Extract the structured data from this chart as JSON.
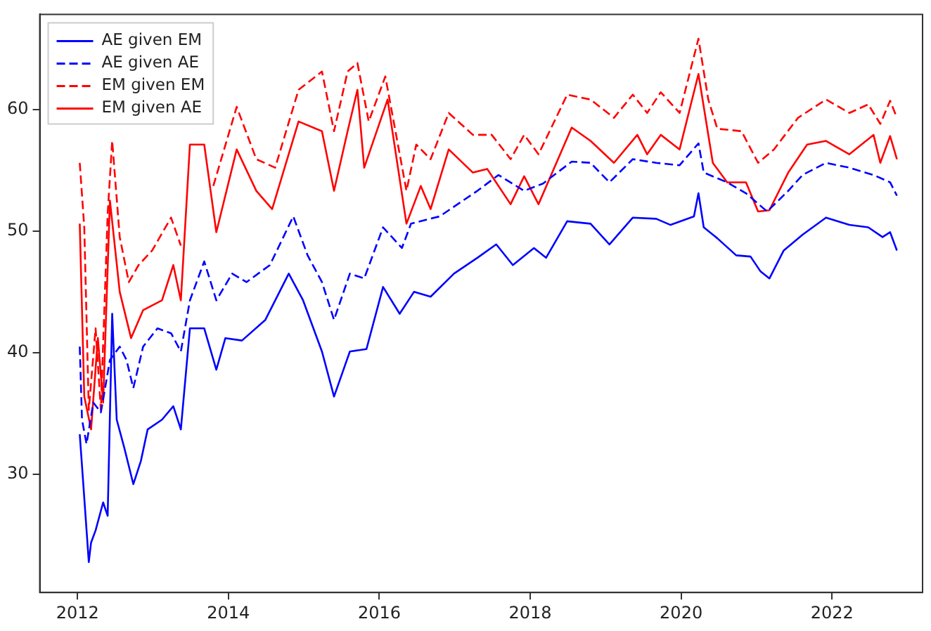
{
  "chart_data": {
    "type": "line",
    "legend": "top left",
    "grid": false,
    "marker": "none",
    "xlim": [
      2011.5,
      2023.2
    ],
    "ylim": [
      20.3,
      67.8
    ],
    "xticks": [
      2012,
      2014,
      2016,
      2018,
      2020,
      2022
    ],
    "yticks": [
      30,
      40,
      50,
      60
    ],
    "series": [
      {
        "name": "AE given EM",
        "color": "#0000ff",
        "line_style": "solid",
        "x": [
          2012.03,
          2012.06,
          2012.15,
          2012.18,
          2012.24,
          2012.34,
          2012.4,
          2012.46,
          2012.52,
          2012.62,
          2012.74,
          2012.84,
          2012.93,
          2013.12,
          2013.27,
          2013.37,
          2013.49,
          2013.68,
          2013.84,
          2013.96,
          2014.18,
          2014.49,
          2014.8,
          2014.99,
          2015.24,
          2015.4,
          2015.61,
          2015.83,
          2016.05,
          2016.27,
          2016.46,
          2016.68,
          2016.99,
          2017.3,
          2017.55,
          2017.77,
          2018.05,
          2018.21,
          2018.49,
          2018.8,
          2019.05,
          2019.36,
          2019.67,
          2019.86,
          2020.17,
          2020.23,
          2020.3,
          2020.48,
          2020.73,
          2020.92,
          2021.05,
          2021.17,
          2021.36,
          2021.61,
          2021.92,
          2022.23,
          2022.48,
          2022.67,
          2022.77,
          2022.86
        ],
        "values": [
          33.3,
          30.7,
          22.8,
          24.4,
          25.4,
          27.7,
          26.6,
          43.2,
          34.5,
          32.2,
          29.2,
          31.1,
          33.7,
          34.5,
          35.6,
          33.7,
          42.0,
          42.0,
          38.6,
          41.2,
          41.0,
          42.7,
          46.5,
          44.3,
          40.1,
          36.4,
          40.1,
          40.3,
          45.4,
          43.2,
          45.0,
          44.6,
          46.5,
          47.8,
          48.9,
          47.2,
          48.6,
          47.8,
          50.8,
          50.6,
          48.9,
          51.1,
          51.0,
          50.5,
          51.2,
          53.1,
          50.3,
          49.4,
          48.0,
          47.9,
          46.7,
          46.1,
          48.4,
          49.7,
          51.1,
          50.5,
          50.3,
          49.5,
          49.9,
          48.4
        ]
      },
      {
        "name": "AE given AE",
        "color": "#0000ff",
        "line_style": "dashed",
        "x": [
          2012.03,
          2012.06,
          2012.12,
          2012.21,
          2012.31,
          2012.43,
          2012.56,
          2012.65,
          2012.74,
          2012.87,
          2013.06,
          2013.24,
          2013.37,
          2013.49,
          2013.68,
          2013.84,
          2014.05,
          2014.24,
          2014.55,
          2014.86,
          2015.05,
          2015.24,
          2015.4,
          2015.61,
          2015.8,
          2016.05,
          2016.3,
          2016.42,
          2016.8,
          2017.3,
          2017.58,
          2017.92,
          2018.17,
          2018.55,
          2018.8,
          2019.05,
          2019.36,
          2019.67,
          2019.98,
          2020.23,
          2020.3,
          2020.61,
          2020.86,
          2021.14,
          2021.42,
          2021.61,
          2021.92,
          2022.23,
          2022.55,
          2022.77,
          2022.86
        ],
        "values": [
          40.5,
          34.5,
          32.5,
          35.9,
          35.1,
          39.4,
          40.5,
          39.4,
          37.1,
          40.5,
          42.0,
          41.6,
          40.1,
          44.3,
          47.5,
          44.3,
          46.5,
          45.8,
          47.2,
          51.2,
          48.0,
          45.8,
          42.7,
          46.5,
          46.1,
          50.3,
          48.6,
          50.6,
          51.2,
          53.3,
          54.6,
          53.3,
          53.9,
          55.7,
          55.6,
          54.0,
          55.9,
          55.6,
          55.4,
          57.2,
          54.8,
          54.0,
          53.1,
          51.6,
          53.3,
          54.6,
          55.6,
          55.2,
          54.6,
          54.0,
          52.9
        ]
      },
      {
        "name": "EM given EM",
        "color": "#ff0000",
        "line_style": "dashed",
        "x": [
          2012.03,
          2012.09,
          2012.15,
          2012.24,
          2012.31,
          2012.4,
          2012.46,
          2012.56,
          2012.68,
          2012.81,
          2012.99,
          2013.24,
          2013.37,
          2013.46,
          2013.62,
          2013.8,
          2014.11,
          2014.37,
          2014.62,
          2014.93,
          2015.24,
          2015.4,
          2015.58,
          2015.71,
          2015.86,
          2016.08,
          2016.36,
          2016.49,
          2016.68,
          2016.92,
          2017.24,
          2017.49,
          2017.74,
          2017.92,
          2018.11,
          2018.49,
          2018.8,
          2019.11,
          2019.36,
          2019.55,
          2019.73,
          2019.98,
          2020.23,
          2020.36,
          2020.48,
          2020.8,
          2021.02,
          2021.23,
          2021.55,
          2021.92,
          2022.23,
          2022.48,
          2022.64,
          2022.77,
          2022.86
        ],
        "values": [
          55.6,
          50.3,
          35.3,
          42.0,
          35.3,
          51.4,
          57.4,
          49.5,
          45.8,
          47.2,
          48.4,
          51.1,
          48.8,
          null,
          null,
          53.7,
          60.2,
          55.9,
          55.2,
          61.6,
          63.1,
          58.2,
          63.1,
          63.8,
          59.0,
          62.7,
          53.3,
          57.1,
          55.9,
          59.7,
          57.9,
          57.9,
          55.9,
          57.9,
          56.3,
          61.2,
          60.8,
          59.3,
          61.2,
          59.7,
          61.4,
          59.7,
          65.8,
          60.8,
          58.4,
          58.2,
          55.6,
          56.7,
          59.3,
          60.8,
          59.7,
          60.4,
          58.8,
          60.7,
          59.3
        ]
      },
      {
        "name": "EM given AE",
        "color": "#ff0000",
        "line_style": "solid",
        "x": [
          2012.03,
          2012.09,
          2012.18,
          2012.27,
          2012.34,
          2012.43,
          2012.56,
          2012.71,
          2012.87,
          2013.12,
          2013.27,
          2013.37,
          2013.49,
          2013.68,
          2013.84,
          2014.11,
          2014.37,
          2014.58,
          2014.93,
          2015.24,
          2015.4,
          2015.58,
          2015.71,
          2015.8,
          2016.11,
          2016.36,
          2016.55,
          2016.68,
          2016.92,
          2017.24,
          2017.43,
          2017.74,
          2017.92,
          2018.11,
          2018.55,
          2018.8,
          2019.11,
          2019.42,
          2019.55,
          2019.73,
          2019.98,
          2020.23,
          2020.42,
          2020.61,
          2020.86,
          2021.02,
          2021.17,
          2021.42,
          2021.67,
          2021.92,
          2022.23,
          2022.55,
          2022.64,
          2022.77,
          2022.86
        ],
        "values": [
          50.6,
          36.4,
          33.7,
          41.2,
          35.9,
          52.5,
          45.0,
          41.2,
          43.5,
          44.3,
          47.2,
          44.3,
          57.1,
          57.1,
          49.9,
          56.7,
          53.3,
          51.8,
          59.0,
          58.2,
          53.3,
          58.2,
          61.6,
          55.2,
          60.8,
          50.6,
          53.7,
          51.8,
          56.7,
          54.8,
          55.1,
          52.2,
          54.5,
          52.2,
          58.5,
          57.4,
          55.6,
          57.9,
          56.3,
          57.9,
          56.7,
          62.9,
          55.6,
          54.0,
          54.0,
          51.6,
          51.7,
          54.8,
          57.1,
          57.4,
          56.3,
          57.9,
          55.6,
          57.8,
          55.9
        ]
      }
    ]
  }
}
